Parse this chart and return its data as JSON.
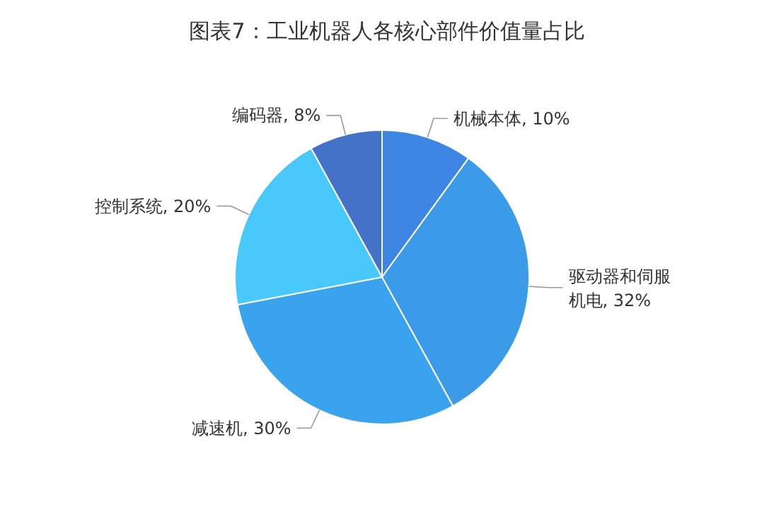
{
  "chart_data": {
    "type": "pie",
    "title": "图表7：工业机器人各核心部件价值量占比",
    "categories": [
      "机械本体",
      "驱动器和伺服机电",
      "减速机",
      "控制系统",
      "编码器"
    ],
    "values": [
      10,
      32,
      30,
      20,
      8
    ],
    "value_labels": [
      ", 10%",
      ", 32%",
      ", 30%",
      ", 20%",
      ", 8%"
    ],
    "colors": [
      "#3d86e3",
      "#3c9be8",
      "#3aa3ee",
      "#49c8fc",
      "#4472c8"
    ],
    "legend": false
  }
}
